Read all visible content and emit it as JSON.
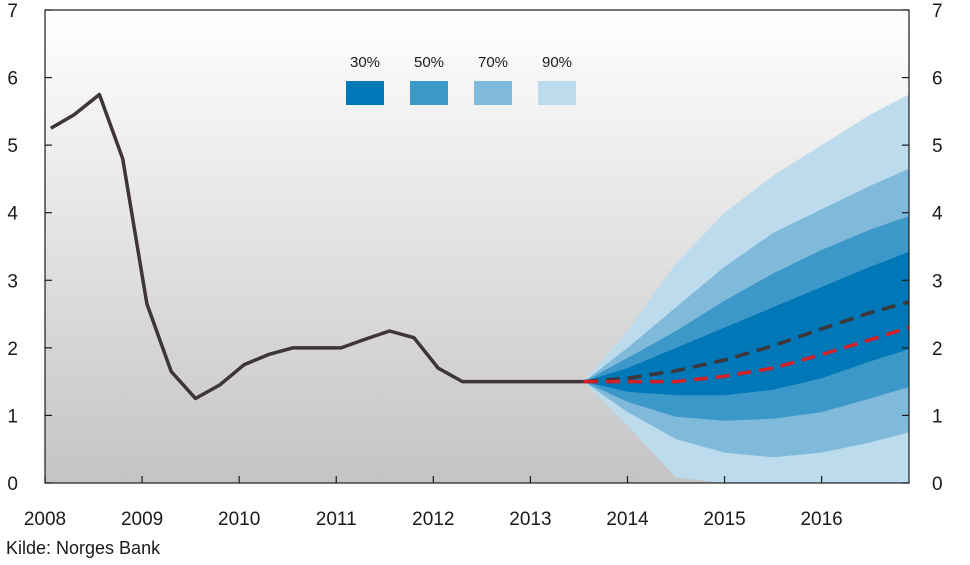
{
  "chart_data": {
    "type": "line",
    "title": "",
    "xlabel": "",
    "ylabel": "",
    "xlim": [
      2008,
      2016.9
    ],
    "ylim": [
      0,
      7
    ],
    "x_ticks": [
      "2008",
      "2009",
      "2010",
      "2011",
      "2012",
      "2013",
      "2014",
      "2015",
      "2016"
    ],
    "y_ticks": [
      "0",
      "1",
      "2",
      "3",
      "4",
      "5",
      "6",
      "7"
    ],
    "grid": false,
    "legend_position": "top-center",
    "legend": [
      {
        "label": "30%",
        "color": "#0077b6"
      },
      {
        "label": "50%",
        "color": "#3c98c9"
      },
      {
        "label": "70%",
        "color": "#7fbadb"
      },
      {
        "label": "90%",
        "color": "#bcdcee"
      }
    ],
    "series": [
      {
        "name": "Historical",
        "style": "solid",
        "color": "#3d3538",
        "points": [
          [
            2008.06,
            5.25
          ],
          [
            2008.3,
            5.45
          ],
          [
            2008.56,
            5.75
          ],
          [
            2008.8,
            4.8
          ],
          [
            2009.05,
            2.65
          ],
          [
            2009.3,
            1.65
          ],
          [
            2009.55,
            1.25
          ],
          [
            2009.8,
            1.45
          ],
          [
            2010.05,
            1.75
          ],
          [
            2010.3,
            1.9
          ],
          [
            2010.55,
            2.0
          ],
          [
            2010.8,
            2.0
          ],
          [
            2011.05,
            2.0
          ],
          [
            2011.3,
            2.13
          ],
          [
            2011.55,
            2.25
          ],
          [
            2011.8,
            2.15
          ],
          [
            2012.05,
            1.7
          ],
          [
            2012.3,
            1.5
          ],
          [
            2012.55,
            1.5
          ],
          [
            2012.8,
            1.5
          ],
          [
            2013.05,
            1.5
          ],
          [
            2013.3,
            1.5
          ],
          [
            2013.55,
            1.5
          ]
        ]
      },
      {
        "name": "Projection (black dashed)",
        "style": "dashed",
        "color": "#3d3538",
        "points": [
          [
            2013.55,
            1.5
          ],
          [
            2014.0,
            1.55
          ],
          [
            2014.5,
            1.66
          ],
          [
            2015.0,
            1.82
          ],
          [
            2015.5,
            2.03
          ],
          [
            2016.0,
            2.28
          ],
          [
            2016.5,
            2.52
          ],
          [
            2016.9,
            2.68
          ]
        ]
      },
      {
        "name": "Projection (red dashed)",
        "style": "dashed",
        "color": "#d41f26",
        "points": [
          [
            2013.55,
            1.5
          ],
          [
            2014.0,
            1.5
          ],
          [
            2014.5,
            1.5
          ],
          [
            2015.0,
            1.58
          ],
          [
            2015.5,
            1.7
          ],
          [
            2016.0,
            1.9
          ],
          [
            2016.5,
            2.12
          ],
          [
            2016.9,
            2.3
          ]
        ]
      }
    ],
    "fan_bands": [
      {
        "level": "90%",
        "color": "#bcdcee",
        "x": [
          2013.55,
          2014.0,
          2014.5,
          2015.0,
          2015.5,
          2016.0,
          2016.5,
          2016.9
        ],
        "upper": [
          1.5,
          2.25,
          3.25,
          4.0,
          4.55,
          5.0,
          5.45,
          5.75
        ],
        "lower": [
          1.5,
          0.85,
          0.08,
          0.0,
          0.0,
          0.0,
          0.0,
          0.0
        ]
      },
      {
        "level": "70%",
        "color": "#7fbadb",
        "x": [
          2013.55,
          2014.0,
          2014.5,
          2015.0,
          2015.5,
          2016.0,
          2016.5,
          2016.9
        ],
        "upper": [
          1.5,
          2.0,
          2.6,
          3.2,
          3.7,
          4.05,
          4.4,
          4.65
        ],
        "lower": [
          1.5,
          1.05,
          0.65,
          0.45,
          0.38,
          0.45,
          0.6,
          0.75
        ]
      },
      {
        "level": "50%",
        "color": "#3c98c9",
        "x": [
          2013.55,
          2014.0,
          2014.5,
          2015.0,
          2015.5,
          2016.0,
          2016.5,
          2016.9
        ],
        "upper": [
          1.5,
          1.85,
          2.25,
          2.7,
          3.1,
          3.45,
          3.75,
          3.95
        ],
        "lower": [
          1.5,
          1.2,
          0.98,
          0.92,
          0.95,
          1.05,
          1.25,
          1.42
        ]
      },
      {
        "level": "30%",
        "color": "#0077b6",
        "x": [
          2013.55,
          2014.0,
          2014.5,
          2015.0,
          2015.5,
          2016.0,
          2016.5,
          2016.9
        ],
        "upper": [
          1.5,
          1.7,
          2.0,
          2.3,
          2.6,
          2.9,
          3.2,
          3.42
        ],
        "lower": [
          1.5,
          1.35,
          1.3,
          1.3,
          1.38,
          1.55,
          1.8,
          1.98
        ]
      }
    ]
  },
  "footer": {
    "source": "Kilde: Norges Bank"
  }
}
